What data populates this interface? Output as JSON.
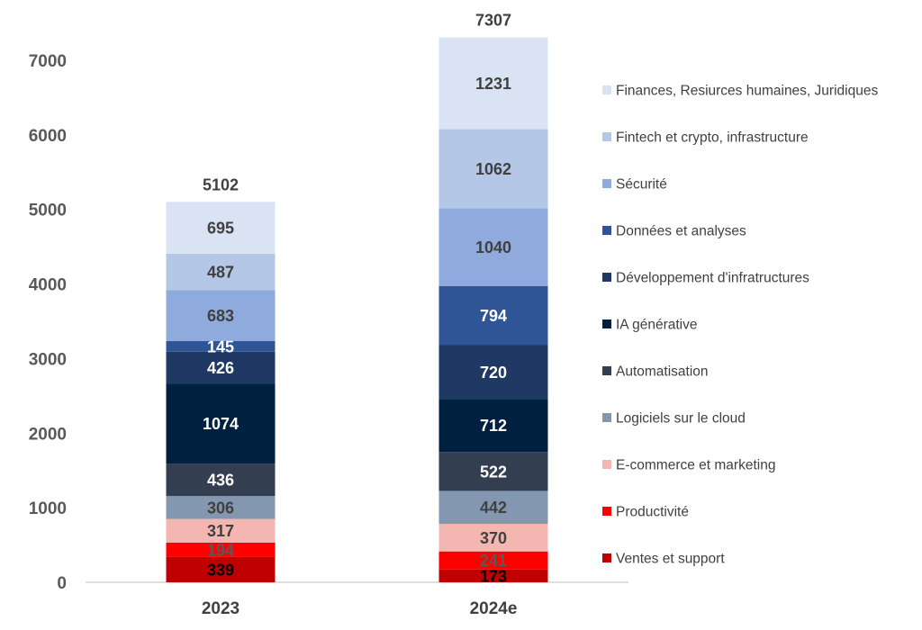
{
  "chart_data": {
    "type": "bar",
    "stacked": true,
    "categories": [
      "2023",
      "2024e"
    ],
    "totals": [
      5102,
      7307
    ],
    "ylim": [
      0,
      7000
    ],
    "yticks": [
      0,
      1000,
      2000,
      3000,
      4000,
      5000,
      6000,
      7000
    ],
    "grid": false,
    "legend_position": "right",
    "series": [
      {
        "name": "Ventes et support",
        "values": [
          339,
          173
        ],
        "color": "#C00000"
      },
      {
        "name": "Productivité",
        "values": [
          194,
          241
        ],
        "color": "#FF0000"
      },
      {
        "name": "E-commerce et marketing",
        "values": [
          317,
          370
        ],
        "color": "#F4B6B0"
      },
      {
        "name": "Logiciels sur le cloud",
        "values": [
          306,
          442
        ],
        "color": "#8497B0"
      },
      {
        "name": "Automatisation",
        "values": [
          436,
          522
        ],
        "color": "#333F50"
      },
      {
        "name": "IA générative",
        "values": [
          1074,
          712
        ],
        "color": "#002040"
      },
      {
        "name": "Développement d'infratructures",
        "values": [
          426,
          720
        ],
        "color": "#1F3864"
      },
      {
        "name": "Données et analyses",
        "values": [
          145,
          794
        ],
        "color": "#2F5597"
      },
      {
        "name": "Sécurité",
        "values": [
          683,
          1040
        ],
        "color": "#8FAADC"
      },
      {
        "name": "Fintech et crypto, infrastructure",
        "values": [
          487,
          1062
        ],
        "color": "#B4C7E7"
      },
      {
        "name": "Finances, Resiurces humaines, Juridiques",
        "values": [
          695,
          1231
        ],
        "color": "#DAE3F3"
      }
    ]
  }
}
